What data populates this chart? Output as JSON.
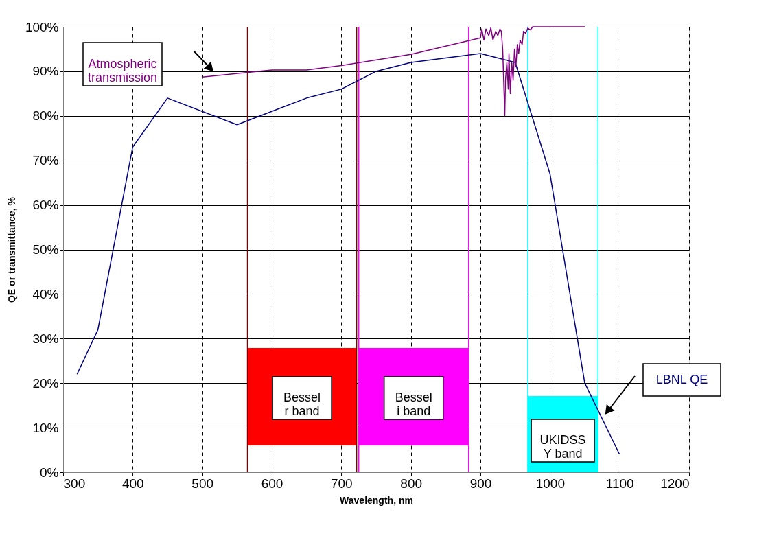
{
  "chart_data": {
    "type": "line",
    "xlabel": "Wavelength, nm",
    "ylabel": "QE or transmittance, %",
    "xlim": [
      300,
      1200
    ],
    "xticks": [
      300,
      400,
      500,
      600,
      700,
      800,
      900,
      1000,
      1100,
      1200
    ],
    "ylim": [
      0,
      100
    ],
    "yticks": [
      {
        "value": 0,
        "label": "0%"
      },
      {
        "value": 10,
        "label": "10%"
      },
      {
        "value": 20,
        "label": "20%"
      },
      {
        "value": 30,
        "label": "30%"
      },
      {
        "value": 40,
        "label": "40%"
      },
      {
        "value": 50,
        "label": "50%"
      },
      {
        "value": 60,
        "label": "60%"
      },
      {
        "value": 70,
        "label": "70%"
      },
      {
        "value": 80,
        "label": "80%"
      },
      {
        "value": 90,
        "label": "90%"
      },
      {
        "value": 100,
        "label": "100%"
      }
    ],
    "grid": true,
    "legend": false,
    "marker": "none",
    "line_style": "solid",
    "series": [
      {
        "name": "LBNL QE",
        "color": "#000080",
        "x": [
          320,
          350,
          400,
          450,
          550,
          600,
          650,
          700,
          750,
          800,
          900,
          950,
          1000,
          1050,
          1100
        ],
        "values": [
          22,
          32,
          73,
          84,
          78,
          81,
          84,
          86,
          90,
          92,
          94,
          92,
          67,
          20,
          4
        ]
      },
      {
        "name": "Atmospheric transmission",
        "color": "#800080",
        "x": [
          500,
          600,
          650,
          700,
          800,
          900,
          902,
          905,
          908,
          912,
          915,
          918,
          922,
          925,
          928,
          930,
          932,
          934,
          935,
          936,
          938,
          940,
          941,
          943,
          945,
          947,
          949,
          951,
          953,
          955,
          957,
          960,
          962,
          965,
          968,
          972,
          975,
          1050
        ],
        "values": [
          88.7,
          90.3,
          90.3,
          91.3,
          93.8,
          97.5,
          99.5,
          97,
          99.5,
          98,
          99.8,
          97,
          99,
          98,
          99.5,
          99,
          95,
          85,
          80,
          88,
          92,
          86,
          94,
          85,
          92,
          88,
          95,
          91,
          96,
          94,
          97,
          96,
          99,
          98.5,
          99.7,
          99.3,
          100,
          100
        ]
      }
    ],
    "ref_lines": [
      {
        "axis": "x",
        "value": 565,
        "color": "#800000"
      },
      {
        "axis": "x",
        "value": 722,
        "color": "#800000"
      },
      {
        "axis": "x",
        "value": 725,
        "color": "#ff00ff"
      },
      {
        "axis": "x",
        "value": 883,
        "color": "#ff00ff"
      },
      {
        "axis": "x",
        "value": 968,
        "color": "#00ffff"
      },
      {
        "axis": "x",
        "value": 1069,
        "color": "#00ffff"
      }
    ],
    "bands": [
      {
        "axis": "x",
        "from": 565,
        "to": 722,
        "label": "Bessel\nr band",
        "color": "#ff0000"
      },
      {
        "axis": "x",
        "from": 725,
        "to": 883,
        "label": "Bessel\ni band",
        "color": "#ff00ff"
      },
      {
        "axis": "x",
        "from": 968,
        "to": 1069,
        "label": "UKIDSS\nY band",
        "color": "#00ffff"
      }
    ]
  }
}
